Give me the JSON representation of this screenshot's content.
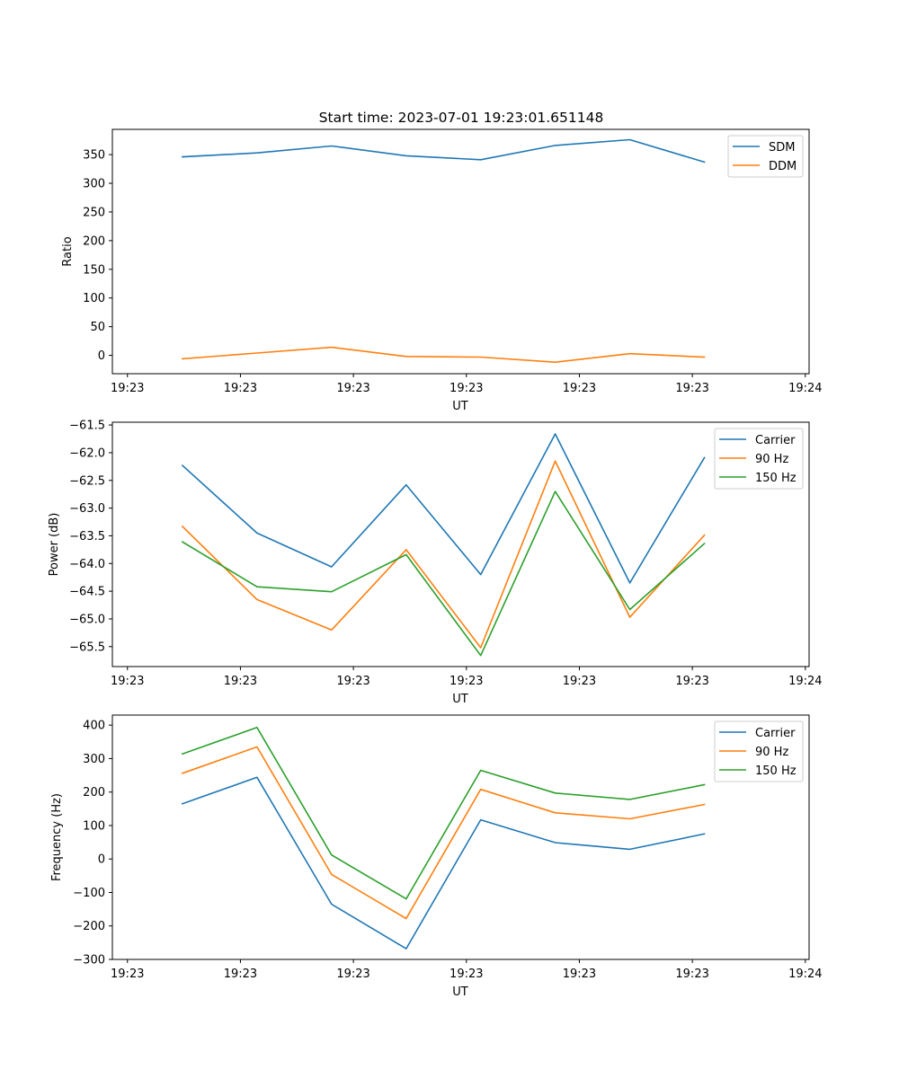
{
  "chart_data": [
    {
      "type": "line",
      "title": "Start time: 2023-07-01 19:23:01.651148",
      "xlabel": "UT",
      "ylabel": "Ratio",
      "ylim": [
        -32,
        394
      ],
      "yticks": [
        0,
        50,
        100,
        150,
        200,
        250,
        300,
        350
      ],
      "xlim": [
        -0.2,
        9.05
      ],
      "xticks": [
        0,
        1.5,
        3,
        4.5,
        6,
        7.5,
        9
      ],
      "xtick_labels": [
        "19:23",
        "19:23",
        "19:23",
        "19:23",
        "19:23",
        "19:23",
        "19:24"
      ],
      "x": [
        0.73,
        1.72,
        2.71,
        3.7,
        4.69,
        5.68,
        6.67,
        7.66
      ],
      "legend": "top-right",
      "grid": false,
      "series": [
        {
          "name": "SDM",
          "color": "#1f77b4",
          "values": [
            346,
            353,
            365,
            348,
            341,
            366,
            376,
            337
          ]
        },
        {
          "name": "DDM",
          "color": "#ff7f0e",
          "values": [
            -6,
            4,
            14,
            -2,
            -3,
            -12,
            3,
            -3
          ]
        }
      ]
    },
    {
      "type": "line",
      "title": "",
      "xlabel": "UT",
      "ylabel": "Power (dB)",
      "ylim": [
        -65.86,
        -61.45
      ],
      "yticks": [
        -65.5,
        -65.0,
        -64.5,
        -64.0,
        -63.5,
        -63.0,
        -62.5,
        -62.0,
        -61.5
      ],
      "ytick_labels": [
        "−65.5",
        "−65.0",
        "−64.5",
        "−64.0",
        "−63.5",
        "−63.0",
        "−62.5",
        "−62.0",
        "−61.5"
      ],
      "xlim": [
        -0.2,
        9.05
      ],
      "xticks": [
        0,
        1.5,
        3,
        4.5,
        6,
        7.5,
        9
      ],
      "xtick_labels": [
        "19:23",
        "19:23",
        "19:23",
        "19:23",
        "19:23",
        "19:23",
        "19:24"
      ],
      "x": [
        0.73,
        1.72,
        2.71,
        3.7,
        4.69,
        5.68,
        6.67,
        7.66
      ],
      "legend": "top-right",
      "grid": false,
      "series": [
        {
          "name": "Carrier",
          "color": "#1f77b4",
          "values": [
            -62.23,
            -63.45,
            -64.06,
            -62.58,
            -64.2,
            -61.66,
            -64.35,
            -62.09
          ]
        },
        {
          "name": "90 Hz",
          "color": "#ff7f0e",
          "values": [
            -63.33,
            -64.65,
            -65.2,
            -63.75,
            -65.52,
            -62.15,
            -64.97,
            -63.49
          ]
        },
        {
          "name": "150 Hz",
          "color": "#2ca02c",
          "values": [
            -63.61,
            -64.42,
            -64.51,
            -63.84,
            -65.66,
            -62.7,
            -64.83,
            -63.64
          ]
        }
      ]
    },
    {
      "type": "line",
      "title": "",
      "xlabel": "UT",
      "ylabel": "Frequency (Hz)",
      "ylim": [
        -300,
        430
      ],
      "yticks": [
        -300,
        -200,
        -100,
        0,
        100,
        200,
        300,
        400
      ],
      "ytick_labels": [
        "−300",
        "−200",
        "−100",
        "0",
        "100",
        "200",
        "300",
        "400"
      ],
      "xlim": [
        -0.2,
        9.05
      ],
      "xticks": [
        0,
        1.5,
        3,
        4.5,
        6,
        7.5,
        9
      ],
      "xtick_labels": [
        "19:23",
        "19:23",
        "19:23",
        "19:23",
        "19:23",
        "19:23",
        "19:24"
      ],
      "x": [
        0.73,
        1.72,
        2.71,
        3.7,
        4.69,
        5.68,
        6.67,
        7.66
      ],
      "legend": "top-right",
      "grid": false,
      "series": [
        {
          "name": "Carrier",
          "color": "#1f77b4",
          "values": [
            165,
            244,
            -135,
            -268,
            117,
            49,
            29,
            75
          ]
        },
        {
          "name": "90 Hz",
          "color": "#ff7f0e",
          "values": [
            256,
            335,
            -46,
            -178,
            208,
            138,
            120,
            163
          ]
        },
        {
          "name": "150 Hz",
          "color": "#2ca02c",
          "values": [
            314,
            393,
            12,
            -119,
            265,
            197,
            178,
            222
          ]
        }
      ]
    }
  ]
}
